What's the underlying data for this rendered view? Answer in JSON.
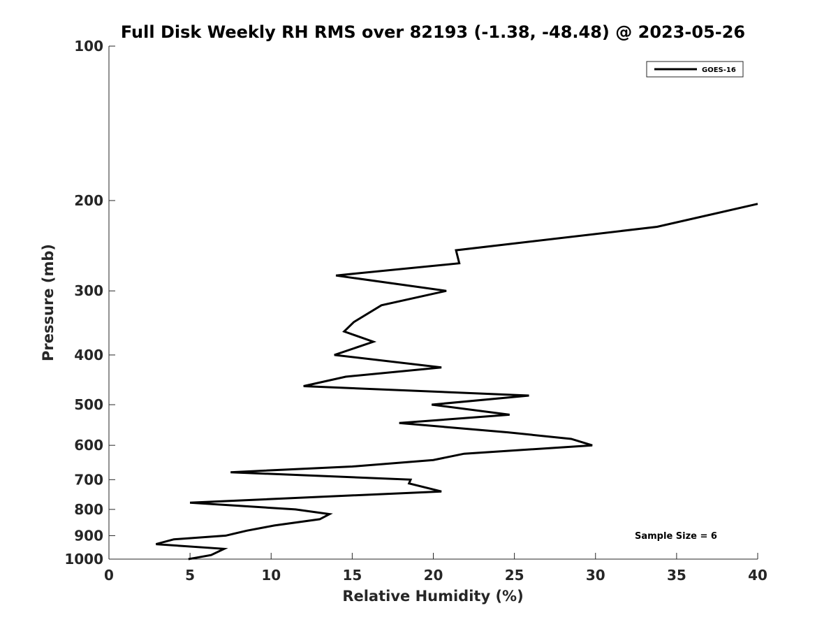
{
  "chart_data": {
    "type": "line",
    "title": "Full Disk Weekly RH RMS over 82193 (-1.38, -48.48) @ 2023-05-26",
    "xlabel": "Relative Humidity (%)",
    "ylabel": "Pressure (mb)",
    "xlim": [
      0,
      40
    ],
    "ylim": [
      100,
      1000
    ],
    "yscale": "log",
    "y_reversed": true,
    "x_ticks": [
      "0",
      "5",
      "10",
      "15",
      "20",
      "25",
      "30",
      "35",
      "40"
    ],
    "y_ticks": [
      "100",
      "200",
      "300",
      "400",
      "500",
      "600",
      "700",
      "800",
      "900",
      "1000"
    ],
    "grid": false,
    "legend_position": "top-right",
    "line_color": "#000000",
    "annotation": "Sample Size = 6",
    "series": [
      {
        "name": "GOES-16",
        "x": [
          40.0,
          33.8,
          21.4,
          21.6,
          14.0,
          20.8,
          16.8,
          15.1,
          14.5,
          16.3,
          13.9,
          20.5,
          14.6,
          12.0,
          25.9,
          19.9,
          24.7,
          17.9,
          24.6,
          28.5,
          29.8,
          21.9,
          20.0,
          15.0,
          7.5,
          18.6,
          18.5,
          20.5,
          5.0,
          11.5,
          13.6,
          13.0,
          10.2,
          8.5,
          7.2,
          4.0,
          2.9,
          7.1,
          6.3,
          4.9
        ],
        "y": [
          203,
          225,
          250,
          265,
          280,
          300,
          320,
          345,
          360,
          377,
          400,
          423,
          441,
          460,
          480,
          500,
          523,
          543,
          566,
          583,
          600,
          623,
          641,
          660,
          677,
          700,
          712,
          738,
          776,
          800,
          817,
          836,
          860,
          880,
          900,
          915,
          935,
          955,
          982,
          1000
        ]
      }
    ]
  }
}
